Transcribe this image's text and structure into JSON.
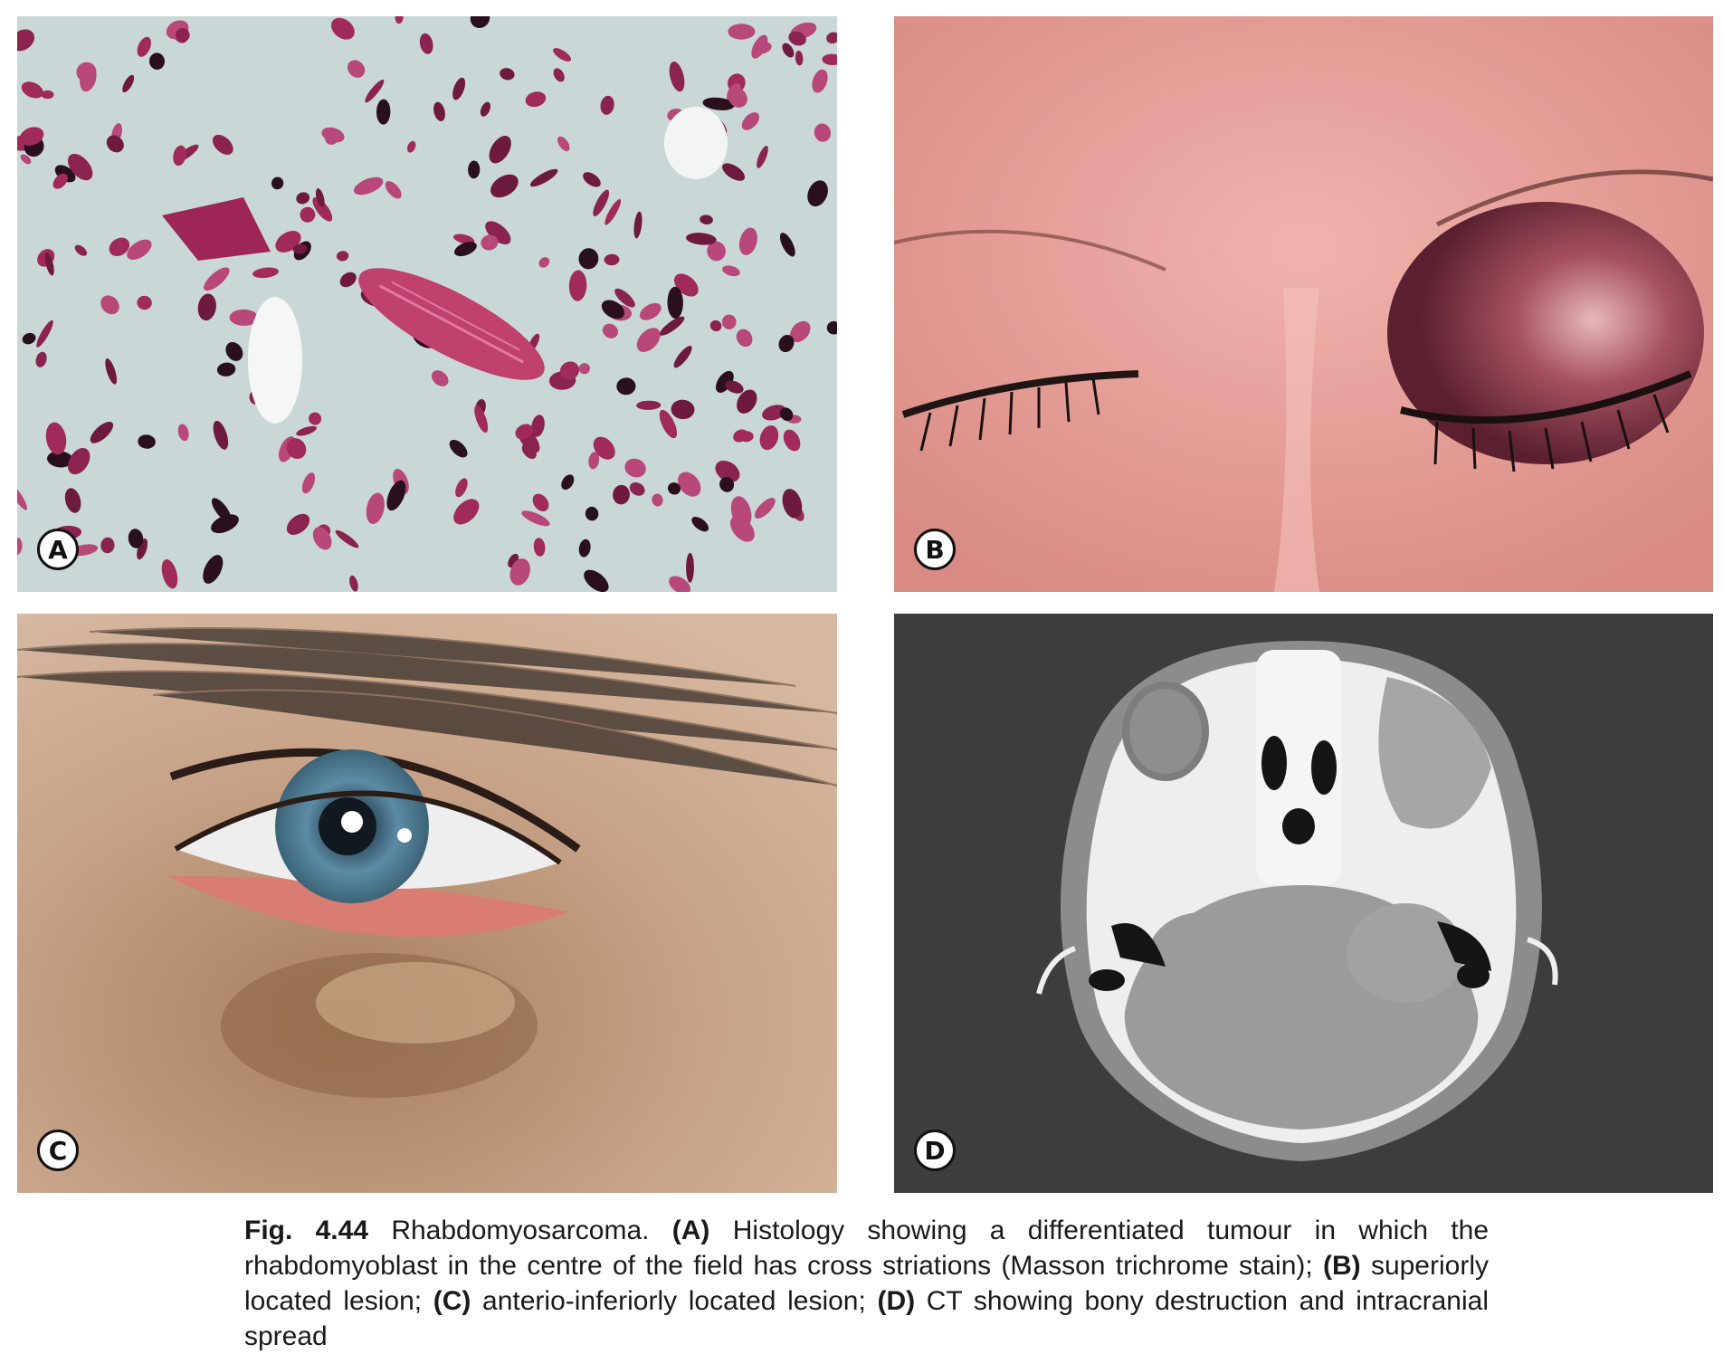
{
  "panels": [
    {
      "id": "A",
      "label": "A"
    },
    {
      "id": "B",
      "label": "B"
    },
    {
      "id": "C",
      "label": "C"
    },
    {
      "id": "D",
      "label": "D"
    }
  ],
  "caption": {
    "fig_number": "Fig. 4.44",
    "title": "Rhabdomyosarcoma.",
    "a_tag": "(A)",
    "a_text": "Histology showing a differentiated tumour in which the rhabdomyoblast in the centre of the field has cross striations (Masson trichrome stain);",
    "b_tag": "(B)",
    "b_text": "superiorly located lesion;",
    "c_tag": "(C)",
    "c_text": "anterio-inferiorly located lesion;",
    "d_tag": "(D)",
    "d_text": "CT showing bony destruction and intracranial spread"
  },
  "colors": {
    "histology_background": "#c9d8d6",
    "histology_nuclei": "#a02a5a",
    "skin_pink": "#e8a29a",
    "skin_tan": "#caa284",
    "iris_blue": "#4f7f99",
    "ct_background": "#3d3d3d",
    "ct_bone": "#efefef",
    "ct_tissue": "#9a9a9a"
  }
}
